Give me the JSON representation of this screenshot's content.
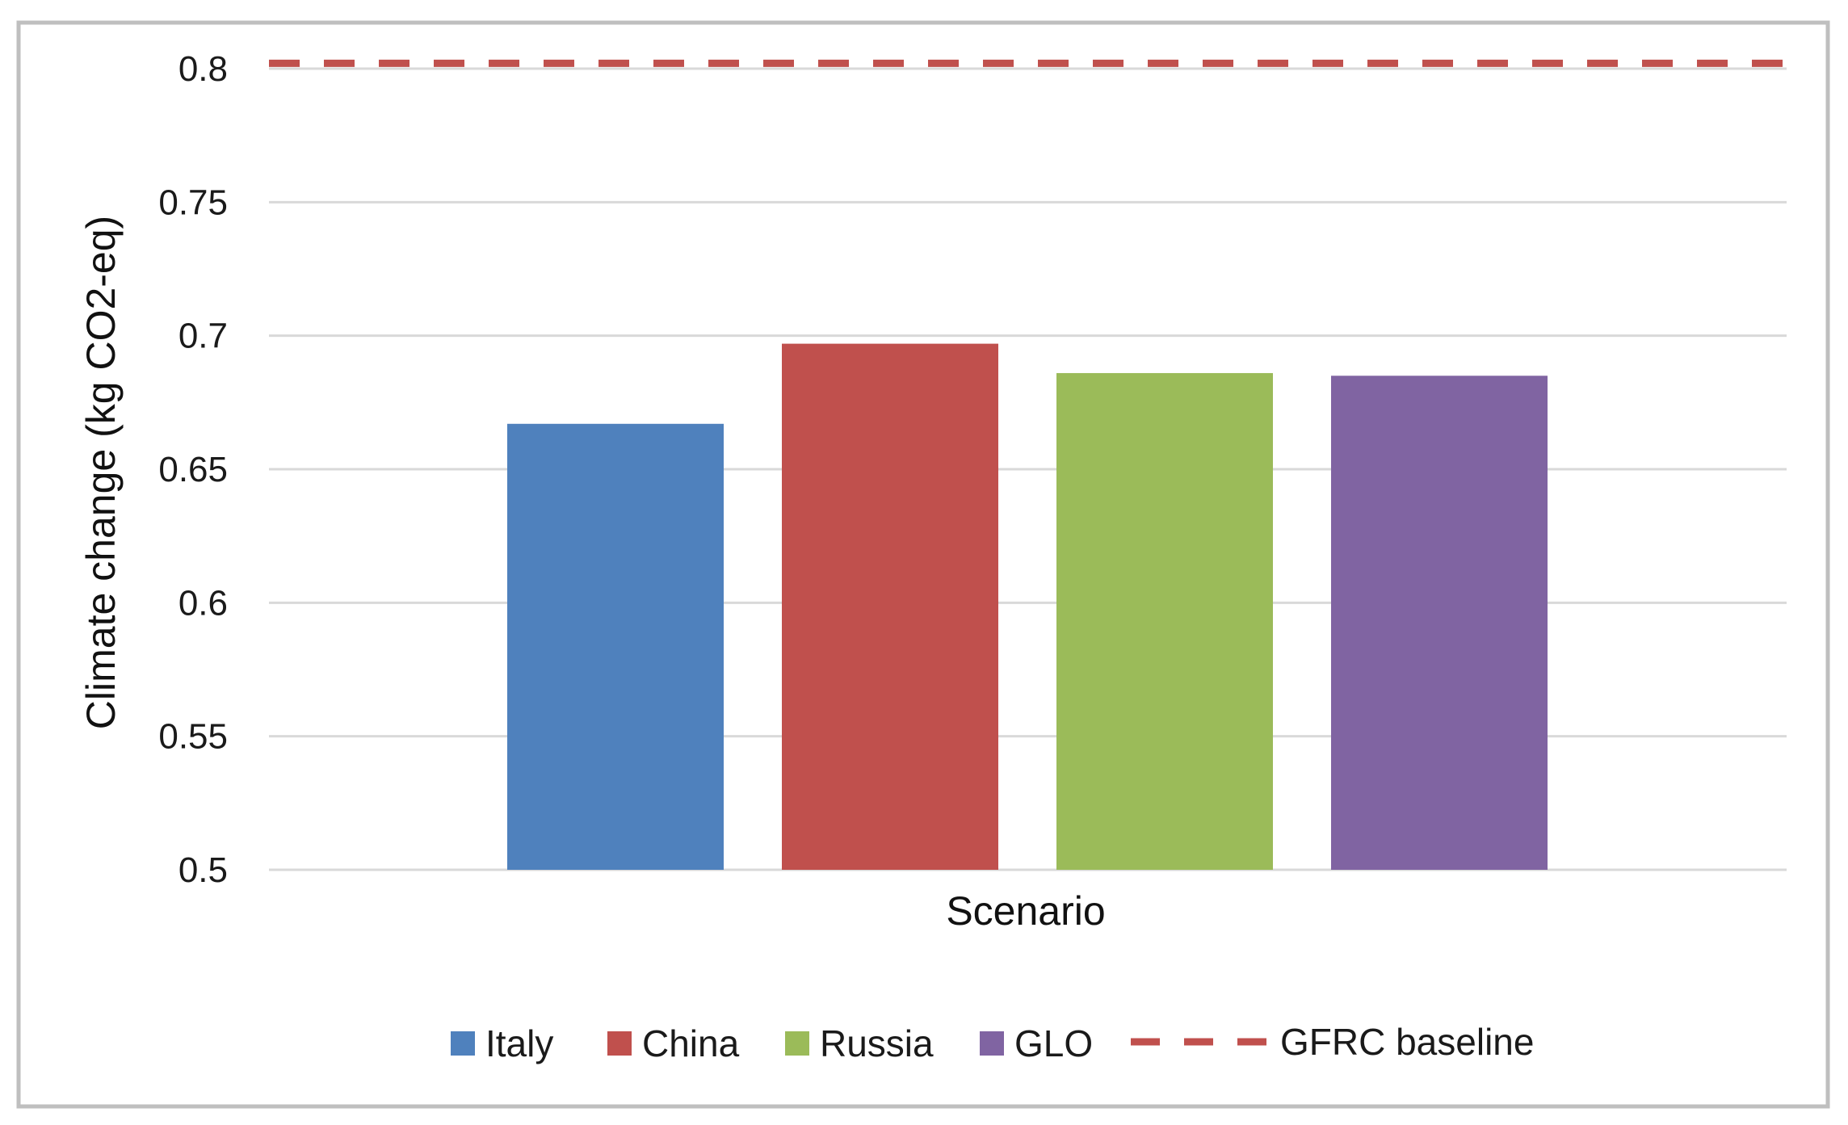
{
  "chart_data": {
    "type": "bar",
    "title": "",
    "xlabel": "Scenario",
    "ylabel": "Climate change (kg CO2-eq)",
    "ylim": [
      0.5,
      0.8
    ],
    "yticks": [
      "0.5",
      "0.55",
      "0.6",
      "0.65",
      "0.7",
      "0.75",
      "0.8"
    ],
    "grid": true,
    "legend_position": "bottom",
    "series": [
      {
        "name": "Italy",
        "value": 0.667,
        "color": "#4f81bd"
      },
      {
        "name": "China",
        "value": 0.697,
        "color": "#c0504d"
      },
      {
        "name": "Russia",
        "value": 0.686,
        "color": "#9bbb59"
      },
      {
        "name": "GLO",
        "value": 0.685,
        "color": "#8064a2"
      }
    ],
    "reference_line": {
      "name": "GFRC baseline",
      "value": 0.802,
      "color": "#c0504d",
      "style": "dashed"
    }
  }
}
